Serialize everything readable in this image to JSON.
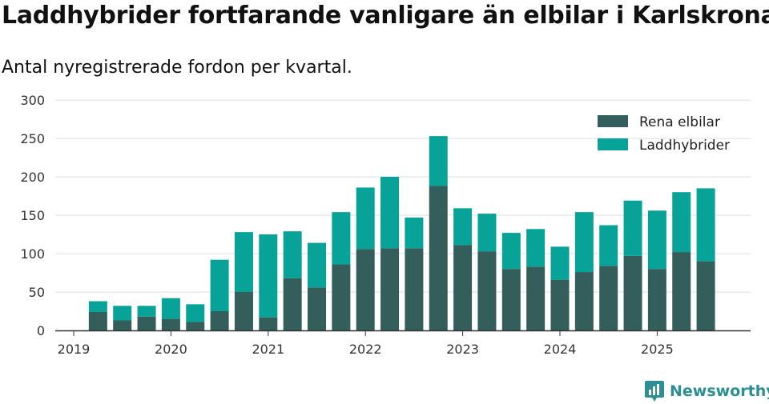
{
  "title": "Laddhybrider fortfarande vanligare än elbilar i Karlskrona",
  "subtitle": "Antal nyregistrerade fordon per kvartal.",
  "brand": {
    "name": "Newsworthy",
    "logo_icon": "newsworthy-logo-icon"
  },
  "colors": {
    "rena_elbilar": "#335e5b",
    "laddhybrider": "#07a398",
    "grid": "#dddddd",
    "axis": "#333333"
  },
  "chart_data": {
    "type": "bar",
    "stacked": true,
    "title": "Laddhybrider fortfarande vanligare än elbilar i Karlskrona",
    "subtitle": "Antal nyregistrerade fordon per kvartal.",
    "xlabel": "",
    "ylabel": "",
    "ylim": [
      0,
      300
    ],
    "yticks": [
      0,
      50,
      100,
      150,
      200,
      250,
      300
    ],
    "xlim": [
      2019.0,
      2026.0
    ],
    "xticks": [
      2019,
      2020,
      2021,
      2022,
      2023,
      2024,
      2025
    ],
    "x_tick_labels": [
      "2019",
      "2020",
      "2021",
      "2022",
      "2023",
      "2024",
      "2025"
    ],
    "grid": true,
    "legend_position": "top-right",
    "categories": [
      "2019 Q2",
      "2019 Q3",
      "2019 Q4",
      "2020 Q1",
      "2020 Q2",
      "2020 Q3",
      "2020 Q4",
      "2021 Q1",
      "2021 Q2",
      "2021 Q3",
      "2021 Q4",
      "2022 Q1",
      "2022 Q2",
      "2022 Q3",
      "2022 Q4",
      "2023 Q1",
      "2023 Q2",
      "2023 Q3",
      "2023 Q4",
      "2024 Q1",
      "2024 Q2",
      "2024 Q3",
      "2024 Q4",
      "2025 Q1",
      "2025 Q2",
      "2025 Q3"
    ],
    "x": [
      2019.25,
      2019.5,
      2019.75,
      2020.0,
      2020.25,
      2020.5,
      2020.75,
      2021.0,
      2021.25,
      2021.5,
      2021.75,
      2022.0,
      2022.25,
      2022.5,
      2022.75,
      2023.0,
      2023.25,
      2023.5,
      2023.75,
      2024.0,
      2024.25,
      2024.5,
      2024.75,
      2025.0,
      2025.25,
      2025.5
    ],
    "series": [
      {
        "name": "Rena elbilar",
        "values": [
          24,
          13,
          18,
          15,
          11,
          25,
          50,
          17,
          68,
          56,
          86,
          106,
          107,
          107,
          188,
          111,
          103,
          80,
          83,
          66,
          76,
          84,
          97,
          80,
          102,
          90
        ]
      },
      {
        "name": "Laddhybrider",
        "values": [
          14,
          19,
          14,
          27,
          23,
          67,
          78,
          108,
          61,
          58,
          68,
          80,
          93,
          40,
          65,
          48,
          49,
          47,
          49,
          43,
          78,
          53,
          72,
          76,
          78,
          95
        ]
      }
    ]
  }
}
